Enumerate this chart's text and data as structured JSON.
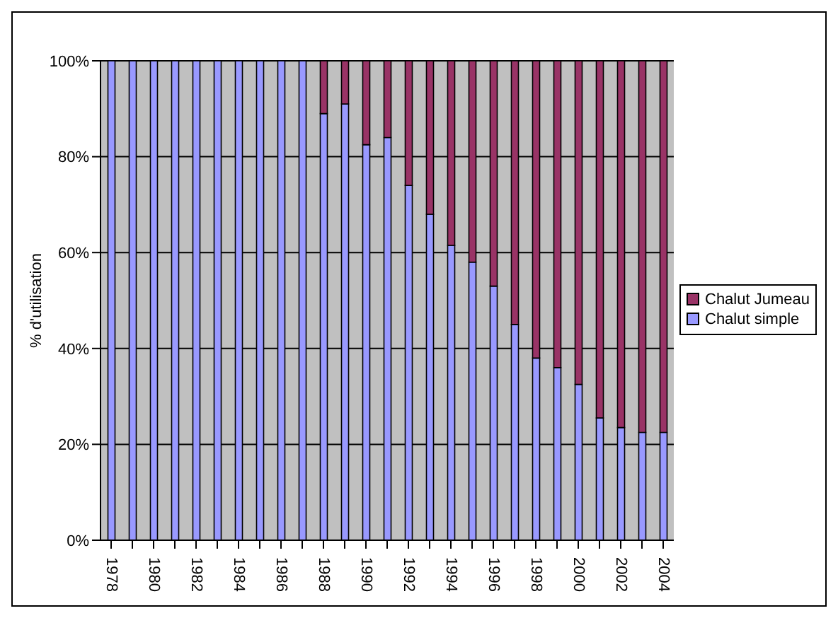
{
  "chart_data": {
    "type": "bar",
    "stacked": true,
    "ylabel": "% d'utilisation",
    "categories": [
      "1978",
      null,
      "1980",
      null,
      "1982",
      null,
      "1984",
      null,
      "1986",
      null,
      "1988",
      null,
      "1990",
      null,
      "1992",
      null,
      "1994",
      null,
      "1996",
      null,
      "1998",
      null,
      "2000",
      null,
      "2002",
      null,
      "2004"
    ],
    "series": [
      {
        "name": "Chalut simple",
        "color": "#9999ff",
        "values": [
          100,
          100,
          100,
          100,
          100,
          100,
          100,
          100,
          100,
          100,
          89,
          91,
          82.5,
          84,
          74,
          68,
          61.5,
          58,
          53,
          45,
          38,
          36,
          32.5,
          25.5,
          23.5,
          22.5,
          22.5
        ]
      },
      {
        "name": "Chalut Jumeau",
        "color": "#993366",
        "values": [
          0,
          0,
          0,
          0,
          0,
          0,
          0,
          0,
          0,
          0,
          11,
          9,
          17.5,
          16,
          26,
          32,
          38.5,
          42,
          47,
          55,
          62,
          64,
          67.5,
          74.5,
          76.5,
          77.5,
          77.5
        ]
      }
    ],
    "ylim": [
      0,
      100
    ],
    "yticks": [
      {
        "value": 0,
        "label": "0%"
      },
      {
        "value": 20,
        "label": "20%"
      },
      {
        "value": 40,
        "label": "40%"
      },
      {
        "value": 60,
        "label": "60%"
      },
      {
        "value": 80,
        "label": "80%"
      },
      {
        "value": 100,
        "label": "100%"
      }
    ],
    "grid": "y",
    "legend": "right"
  }
}
